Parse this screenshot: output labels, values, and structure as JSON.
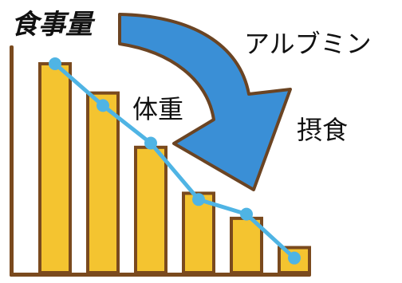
{
  "labels": {
    "meal_amount": "食事量",
    "albumin": "アルブミン",
    "body_weight": "体重",
    "intake": "摂食"
  },
  "chart_data": {
    "type": "bar",
    "categories": [
      "",
      "",
      "",
      "",
      "",
      ""
    ],
    "values": [
      1.0,
      0.86,
      0.6,
      0.38,
      0.26,
      0.12
    ],
    "ylim": [
      0,
      1.0
    ],
    "grid": false,
    "series": [
      {
        "values": [
          1.0,
          0.86,
          0.6,
          0.38,
          0.26,
          0.12
        ]
      }
    ],
    "line_overlay": [
      1.0,
      0.8,
      0.62,
      0.35,
      0.28,
      0.07
    ]
  },
  "colors": {
    "bar_fill": "#F4C430",
    "bar_outline": "#7A4A1E",
    "line": "#4FB4E4",
    "arrow_fill": "#3A8FD6",
    "arrow_outline": "#6B4423",
    "axis": "#7A4A1E"
  },
  "icons": {
    "arrow": "curved-down-arrow-icon"
  }
}
